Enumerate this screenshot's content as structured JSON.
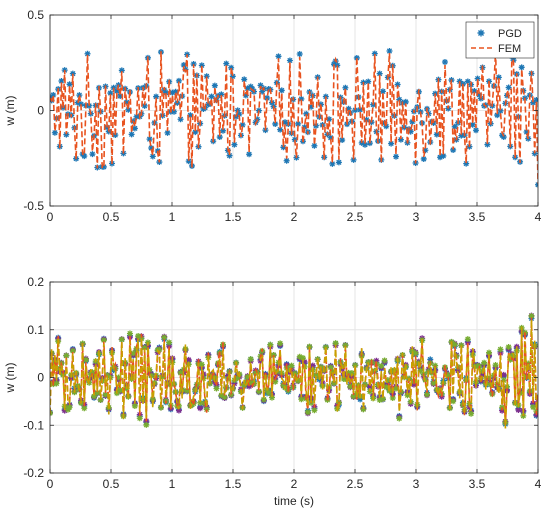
{
  "chart_data": [
    {
      "type": "line",
      "title": "",
      "xlabel": "",
      "ylabel": "w (m)",
      "xlim": [
        0,
        4
      ],
      "ylim": [
        -0.5,
        0.5
      ],
      "x_ticks": [
        "0",
        "0.5",
        "1",
        "1.5",
        "2",
        "2.5",
        "3",
        "3.5",
        "4"
      ],
      "y_ticks": [
        "-0.5",
        "0",
        "0.5"
      ],
      "grid": true,
      "legend_position": "top-right",
      "legend": [
        "PGD",
        "FEM"
      ],
      "sample_count": 300,
      "series": [
        {
          "name": "PGD",
          "style": "markers",
          "marker": "asterisk",
          "color": "#1f77b4",
          "amplitude_envelope": [
            [
              0,
              0.3
            ],
            [
              0.5,
              0.32
            ],
            [
              1,
              0.3
            ],
            [
              1.5,
              0.28
            ],
            [
              2,
              0.3
            ],
            [
              2.5,
              0.32
            ],
            [
              3,
              0.3
            ],
            [
              3.5,
              0.28
            ],
            [
              4,
              0.42
            ]
          ]
        },
        {
          "name": "FEM",
          "style": "dashed",
          "color": "#e8531f",
          "amplitude_envelope": [
            [
              0,
              0.3
            ],
            [
              0.5,
              0.32
            ],
            [
              1,
              0.3
            ],
            [
              1.5,
              0.28
            ],
            [
              2,
              0.3
            ],
            [
              2.5,
              0.32
            ],
            [
              3,
              0.3
            ],
            [
              3.5,
              0.28
            ],
            [
              4,
              0.42
            ]
          ]
        }
      ]
    },
    {
      "type": "line",
      "title": "",
      "xlabel": "time (s)",
      "ylabel": "w (m)",
      "xlim": [
        0,
        4
      ],
      "ylim": [
        -0.2,
        0.2
      ],
      "x_ticks": [
        "0",
        "0.5",
        "1",
        "1.5",
        "2",
        "2.5",
        "3",
        "3.5",
        "4"
      ],
      "y_ticks": [
        "-0.2",
        "-0.1",
        "0",
        "0.1",
        "0.2"
      ],
      "grid": true,
      "sample_count": 300,
      "series": [
        {
          "style": "markers",
          "marker": "asterisk",
          "color": "#1f77b4",
          "amplitude_envelope": [
            [
              0,
              0.09
            ],
            [
              0.5,
              0.08
            ],
            [
              0.8,
              0.12
            ],
            [
              1,
              0.08
            ],
            [
              1.5,
              0.07
            ],
            [
              2,
              0.07
            ],
            [
              2.5,
              0.08
            ],
            [
              3,
              0.08
            ],
            [
              3.5,
              0.08
            ],
            [
              3.9,
              0.13
            ],
            [
              4,
              0.15
            ]
          ]
        },
        {
          "style": "markers",
          "marker": "asterisk",
          "color": "#7e2f8e",
          "amplitude_envelope": [
            [
              0,
              0.09
            ],
            [
              0.5,
              0.08
            ],
            [
              0.8,
              0.12
            ],
            [
              1,
              0.08
            ],
            [
              1.5,
              0.07
            ],
            [
              2,
              0.07
            ],
            [
              2.5,
              0.08
            ],
            [
              3,
              0.08
            ],
            [
              3.5,
              0.08
            ],
            [
              3.9,
              0.13
            ],
            [
              4,
              0.15
            ]
          ]
        },
        {
          "style": "markers",
          "marker": "asterisk",
          "color": "#77ac30",
          "amplitude_envelope": [
            [
              0,
              0.09
            ],
            [
              0.5,
              0.08
            ],
            [
              0.8,
              0.12
            ],
            [
              1,
              0.08
            ],
            [
              1.5,
              0.07
            ],
            [
              2,
              0.07
            ],
            [
              2.5,
              0.08
            ],
            [
              3,
              0.08
            ],
            [
              3.5,
              0.08
            ],
            [
              3.9,
              0.13
            ],
            [
              4,
              0.15
            ]
          ]
        },
        {
          "style": "dashed",
          "color": "#e8531f",
          "amplitude_envelope": [
            [
              0,
              0.09
            ],
            [
              0.5,
              0.08
            ],
            [
              0.8,
              0.12
            ],
            [
              1,
              0.08
            ],
            [
              1.5,
              0.07
            ],
            [
              2,
              0.07
            ],
            [
              2.5,
              0.08
            ],
            [
              3,
              0.08
            ],
            [
              3.5,
              0.08
            ],
            [
              3.9,
              0.13
            ],
            [
              4,
              0.15
            ]
          ]
        },
        {
          "style": "dashed",
          "color": "#c8a000",
          "amplitude_envelope": [
            [
              0,
              0.09
            ],
            [
              0.5,
              0.08
            ],
            [
              0.8,
              0.12
            ],
            [
              1,
              0.08
            ],
            [
              1.5,
              0.07
            ],
            [
              2,
              0.07
            ],
            [
              2.5,
              0.08
            ],
            [
              3,
              0.08
            ],
            [
              3.5,
              0.08
            ],
            [
              3.9,
              0.13
            ],
            [
              4,
              0.15
            ]
          ]
        }
      ]
    }
  ]
}
